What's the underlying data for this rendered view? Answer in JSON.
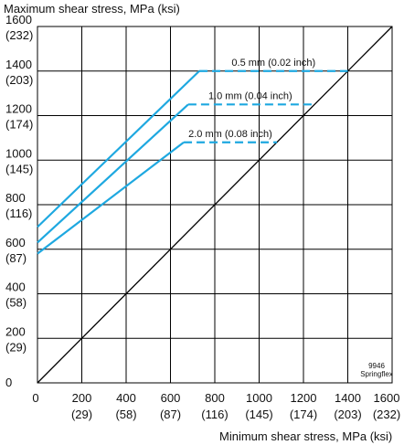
{
  "chart_data": {
    "type": "line",
    "ylabel": "Maximum shear stress, MPa (ksi)",
    "xlabel": "Minimum shear stress, MPa (ksi)",
    "xlim": [
      0,
      1600
    ],
    "ylim": [
      0,
      1600
    ],
    "grid": true,
    "x_ticks": [
      {
        "value": 0,
        "label": "0",
        "sub": ""
      },
      {
        "value": 200,
        "label": "200",
        "sub": "(29)"
      },
      {
        "value": 400,
        "label": "400",
        "sub": "(58)"
      },
      {
        "value": 600,
        "label": "600",
        "sub": "(87)"
      },
      {
        "value": 800,
        "label": "800",
        "sub": "(116)"
      },
      {
        "value": 1000,
        "label": "1000",
        "sub": "(145)"
      },
      {
        "value": 1200,
        "label": "1200",
        "sub": "(174)"
      },
      {
        "value": 1400,
        "label": "1400",
        "sub": "(203)"
      },
      {
        "value": 1600,
        "label": "1600",
        "sub": "(232)"
      }
    ],
    "y_ticks": [
      {
        "value": 0,
        "label": "0",
        "sub": ""
      },
      {
        "value": 200,
        "label": "200",
        "sub": "(29)"
      },
      {
        "value": 400,
        "label": "400",
        "sub": "(58)"
      },
      {
        "value": 600,
        "label": "600",
        "sub": "(87)"
      },
      {
        "value": 800,
        "label": "800",
        "sub": "(116)"
      },
      {
        "value": 1000,
        "label": "1000",
        "sub": "(145)"
      },
      {
        "value": 1200,
        "label": "1200",
        "sub": "(174)"
      },
      {
        "value": 1400,
        "label": "1400",
        "sub": "(203)"
      },
      {
        "value": 1600,
        "label": "1600",
        "sub": "(232)"
      }
    ],
    "reference_line": {
      "x": [
        0,
        1600
      ],
      "y": [
        0,
        1600
      ],
      "color": "#000000"
    },
    "series": [
      {
        "name": "0.5 mm (0.02 inch)",
        "color": "#1ea8e0",
        "solid": {
          "x": [
            0,
            730
          ],
          "y": [
            700,
            1400
          ]
        },
        "dashed": {
          "x": [
            730,
            1400
          ],
          "y": [
            1400,
            1400
          ]
        }
      },
      {
        "name": "1.0 mm (0.04 inch)",
        "color": "#1ea8e0",
        "solid": {
          "x": [
            0,
            680
          ],
          "y": [
            630,
            1250
          ]
        },
        "dashed": {
          "x": [
            680,
            1240
          ],
          "y": [
            1250,
            1250
          ]
        }
      },
      {
        "name": "2.0 mm (0.08 inch)",
        "color": "#1ea8e0",
        "solid": {
          "x": [
            0,
            660
          ],
          "y": [
            580,
            1080
          ]
        },
        "dashed": {
          "x": [
            660,
            1080
          ],
          "y": [
            1080,
            1080
          ]
        }
      }
    ],
    "annotation": {
      "line1": "9946",
      "line2": "Springflex"
    }
  }
}
